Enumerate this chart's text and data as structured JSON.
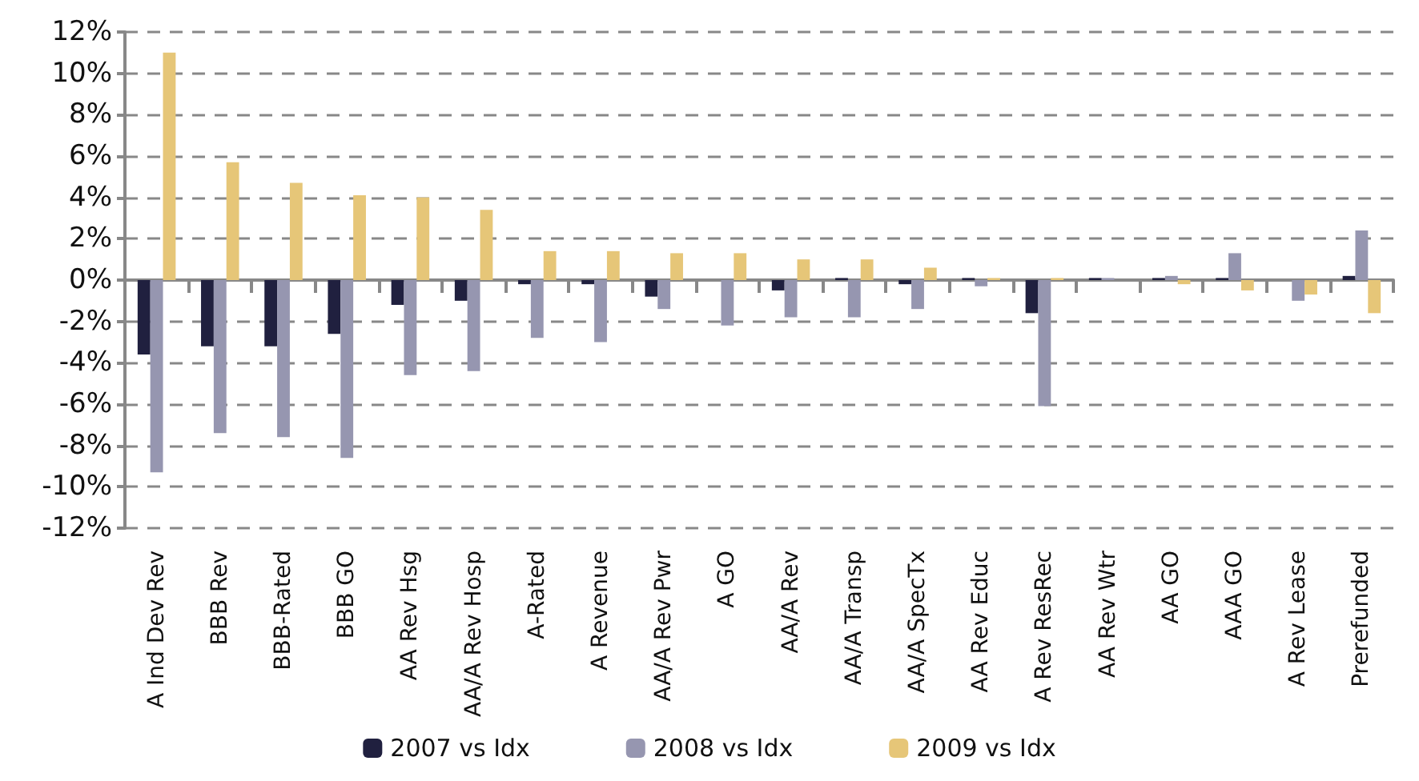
{
  "chart_data": {
    "type": "bar",
    "categories": [
      "A Ind Dev Rev",
      "BBB Rev",
      "BBB-Rated",
      "BBB GO",
      "AA Rev Hsg",
      "AA/A Rev Hosp",
      "A-Rated",
      "A Revenue",
      "AA/A Rev Pwr",
      "A GO",
      "AA/A Rev",
      "AA/A Transp",
      "AA/A SpecTx",
      "AA Rev Educ",
      "A Rev ResRec",
      "AA Rev Wtr",
      "AA GO",
      "AAA GO",
      "A Rev Lease",
      "Prerefunded"
    ],
    "series": [
      {
        "name": "2007 vs Idx",
        "color": "#20203f",
        "values": [
          -3.6,
          -3.2,
          -3.2,
          -2.6,
          -1.2,
          -1.0,
          -0.2,
          -0.2,
          -0.8,
          0,
          -0.5,
          0.1,
          -0.2,
          0.1,
          -1.6,
          0.1,
          0.1,
          0.1,
          0,
          0.2
        ]
      },
      {
        "name": "2008 vs Idx",
        "color": "#9696b0",
        "values": [
          -9.3,
          -7.4,
          -7.6,
          -8.6,
          -4.6,
          -4.4,
          -2.8,
          -3.0,
          -1.4,
          -2.2,
          -1.8,
          -1.8,
          -1.4,
          -0.3,
          -6.1,
          0.1,
          0.2,
          1.3,
          -1.0,
          2.4
        ]
      },
      {
        "name": "2009 vs Idx",
        "color": "#e6c678",
        "values": [
          11.0,
          5.7,
          4.7,
          4.1,
          4.0,
          3.4,
          1.4,
          1.4,
          1.3,
          1.3,
          1.0,
          1.0,
          0.6,
          0.1,
          0.1,
          0,
          -0.2,
          -0.5,
          -0.7,
          -1.6
        ]
      }
    ],
    "ylim": [
      -12,
      12
    ],
    "yticks": [
      {
        "value": -12,
        "label": "-12%"
      },
      {
        "value": -10,
        "label": "-10%"
      },
      {
        "value": -8,
        "label": "-8%"
      },
      {
        "value": -6,
        "label": "-6%"
      },
      {
        "value": -4,
        "label": "-4%"
      },
      {
        "value": -2,
        "label": "-2%"
      },
      {
        "value": 0,
        "label": "0%"
      },
      {
        "value": 2,
        "label": "2%"
      },
      {
        "value": 4,
        "label": "4%"
      },
      {
        "value": 6,
        "label": "6%"
      },
      {
        "value": 8,
        "label": "8%"
      },
      {
        "value": 10,
        "label": "10%"
      },
      {
        "value": 12,
        "label": "12%"
      }
    ],
    "grid": "y",
    "legend": "bottom"
  }
}
